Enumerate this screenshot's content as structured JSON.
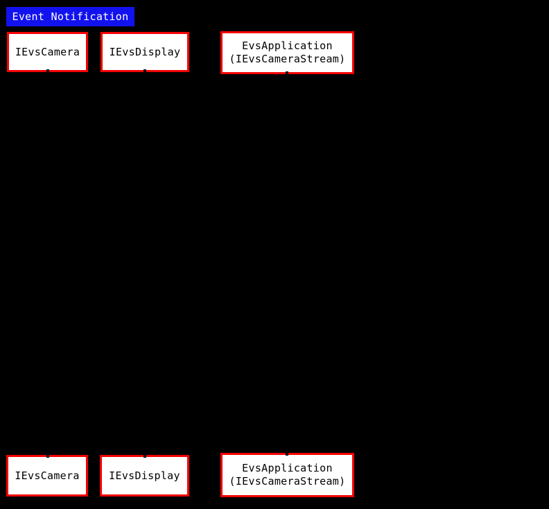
{
  "diagram": {
    "type": "sequence",
    "title": {
      "label": "Event Notification"
    },
    "participants": [
      {
        "label": "IEvsCamera",
        "line1": "IEvsCamera",
        "line2": ""
      },
      {
        "label": "IEvsDisplay",
        "line1": "IEvsDisplay",
        "line2": ""
      },
      {
        "label": "EvsApplication (IEvsCameraStream)",
        "line1": "EvsApplication",
        "line2": "(IEvsCameraStream)"
      }
    ],
    "colors": {
      "background": "#000000",
      "title_bg": "#1212EE",
      "title_text": "#FFFFFF",
      "participant_fill": "#FFFFFF",
      "participant_border": "#F50000",
      "participant_text": "#000000"
    }
  }
}
